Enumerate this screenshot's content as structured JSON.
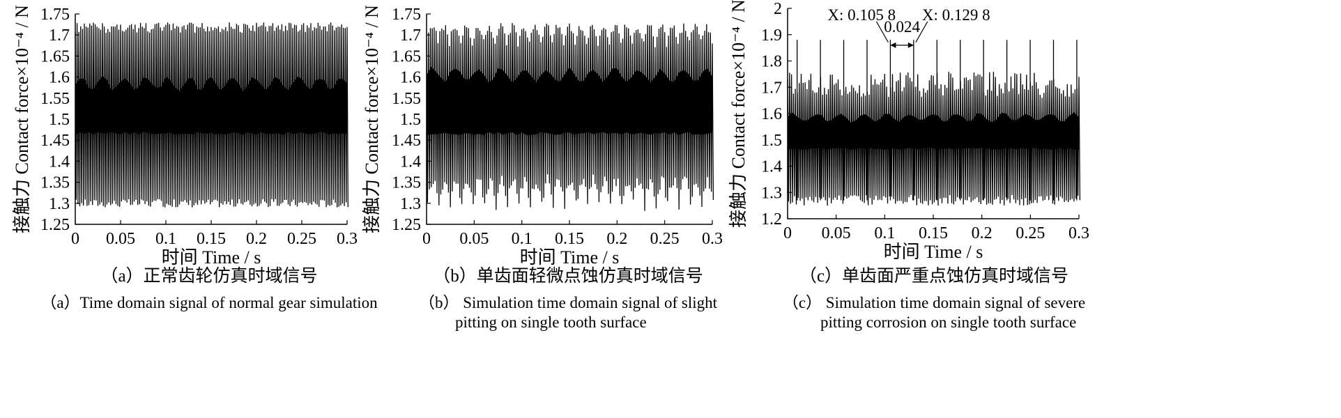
{
  "chart_data": [
    {
      "type": "line",
      "panel": "a",
      "xlabel": "时间 Time / s",
      "ylabel": "接触力 Contact force×10⁻⁴ / N",
      "xlim": [
        0,
        0.3
      ],
      "ylim": [
        1.25,
        1.75
      ],
      "xticks": [
        "0",
        "0.05",
        "0.1",
        "0.15",
        "0.2",
        "0.25",
        "0.3"
      ],
      "yticks": [
        "1.25",
        "1.3",
        "1.35",
        "1.4",
        "1.45",
        "1.5",
        "1.55",
        "1.6",
        "1.65",
        "1.7",
        "1.75"
      ],
      "series": [
        {
          "x_range": [
            0,
            0.3
          ],
          "mean": 1.5,
          "min": 1.29,
          "max": 1.73,
          "band": [
            1.47,
            1.58
          ],
          "oscillations": 150
        }
      ],
      "caption_cn": "（a）正常齿轮仿真时域信号",
      "caption_en": [
        "（a）Time domain signal of normal gear simulation"
      ]
    },
    {
      "type": "line",
      "panel": "b",
      "xlabel": "时间 Time / s",
      "ylabel": "接触力 Contact force×10⁻⁴ / N",
      "xlim": [
        0,
        0.3
      ],
      "ylim": [
        1.25,
        1.75
      ],
      "xticks": [
        "0",
        "0.05",
        "0.1",
        "0.15",
        "0.2",
        "0.25",
        "0.3"
      ],
      "yticks": [
        "1.25",
        "1.3",
        "1.35",
        "1.4",
        "1.45",
        "1.5",
        "1.55",
        "1.6",
        "1.65",
        "1.7",
        "1.75"
      ],
      "series": [
        {
          "x_range": [
            0,
            0.3
          ],
          "mean": 1.5,
          "min": 1.28,
          "max": 1.73,
          "band": [
            1.47,
            1.6
          ],
          "oscillations": 150
        }
      ],
      "caption_cn": "（b）单齿面轻微点蚀仿真时域信号",
      "caption_en": [
        "（b） Simulation time domain signal of slight",
        "pitting on single tooth surface"
      ]
    },
    {
      "type": "line",
      "panel": "c",
      "xlabel": "时间 Time / s",
      "ylabel": "接触力 Contact force×10⁻⁴ / N",
      "xlim": [
        0,
        0.3
      ],
      "ylim": [
        1.2,
        2
      ],
      "xticks": [
        "0",
        "0.05",
        "0.1",
        "0.15",
        "0.2",
        "0.25",
        "0.3"
      ],
      "yticks": [
        "1.2",
        "1.3",
        "1.4",
        "1.5",
        "1.6",
        "1.7",
        "1.8",
        "1.9",
        "2"
      ],
      "series": [
        {
          "x_range": [
            0,
            0.3
          ],
          "mean": 1.5,
          "min": 1.25,
          "max": 1.76,
          "band": [
            1.47,
            1.58
          ],
          "oscillations": 150,
          "impulse_period": 0.024,
          "impulse_start": 0.0098,
          "impulse_peak": 1.88
        }
      ],
      "annotations": [
        {
          "label": "X: 0.105 8",
          "x": 0.1058
        },
        {
          "label": "X: 0.129 8",
          "x": 0.1298
        },
        {
          "label": "0.024",
          "x": 0.1178
        }
      ],
      "caption_cn": "（c）单齿面严重点蚀仿真时域信号",
      "caption_en": [
        "（c） Simulation time domain signal of severe",
        "pitting corrosion on single tooth surface"
      ]
    }
  ]
}
